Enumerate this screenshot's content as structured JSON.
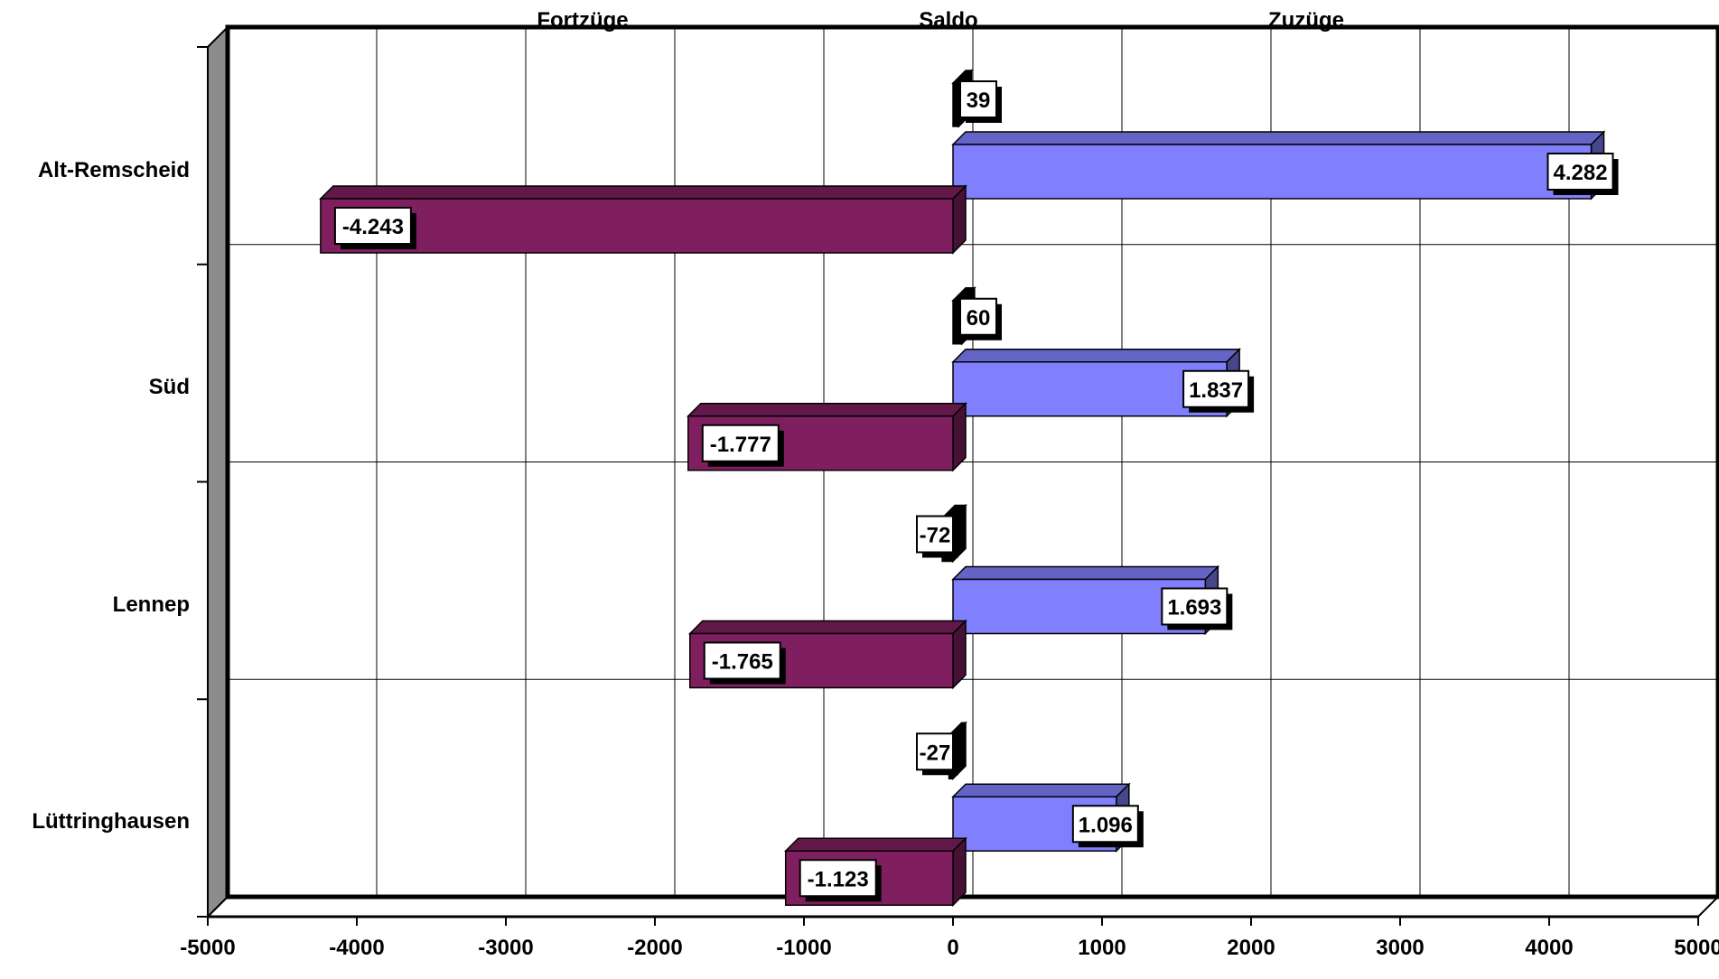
{
  "chart_data": {
    "type": "bar",
    "orientation": "horizontal",
    "style": "3d",
    "title": "",
    "headers": [
      "Fortzüge",
      "Saldo",
      "Zuzüge"
    ],
    "categories": [
      "Alt-Remscheid",
      "Süd",
      "Lennep",
      "Lüttringhausen"
    ],
    "series": [
      {
        "name": "Zuzüge",
        "values": [
          4282,
          1837,
          1693,
          1096
        ],
        "labels": [
          "4.282",
          "1.837",
          "1.693",
          "1.096"
        ],
        "color": "#8080FF"
      },
      {
        "name": "Fortzüge",
        "values": [
          -4243,
          -1777,
          -1765,
          -1123
        ],
        "labels": [
          "-4.243",
          "-1.777",
          "-1.765",
          "-1.123"
        ],
        "color": "#7F1F5F"
      },
      {
        "name": "Saldo",
        "values": [
          39,
          60,
          -72,
          -27
        ],
        "labels": [
          "39",
          "60",
          "-72",
          "-27"
        ],
        "color": "#000000"
      }
    ],
    "xlim": [
      -5000,
      5000
    ],
    "xticks": [
      -5000,
      -4000,
      -3000,
      -2000,
      -1000,
      0,
      1000,
      2000,
      3000,
      4000,
      5000
    ],
    "grid": true,
    "legend": "none"
  }
}
